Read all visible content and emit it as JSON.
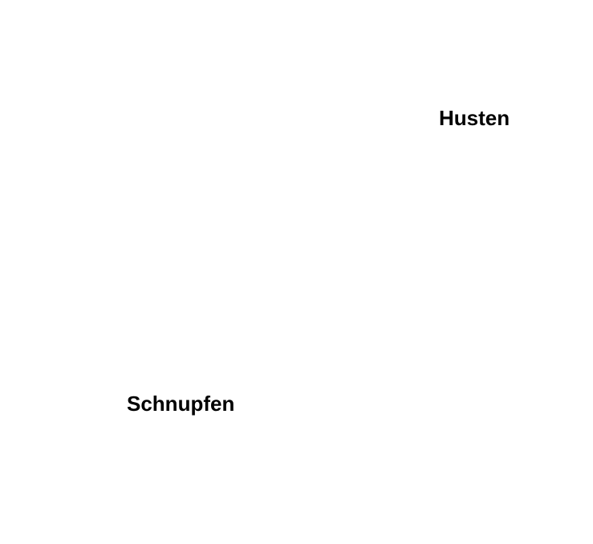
{
  "labels": {
    "top_right": "Husten",
    "bottom_left": "Schnupfen"
  },
  "colors": {
    "background": "#ffffff",
    "text": "#000000"
  }
}
